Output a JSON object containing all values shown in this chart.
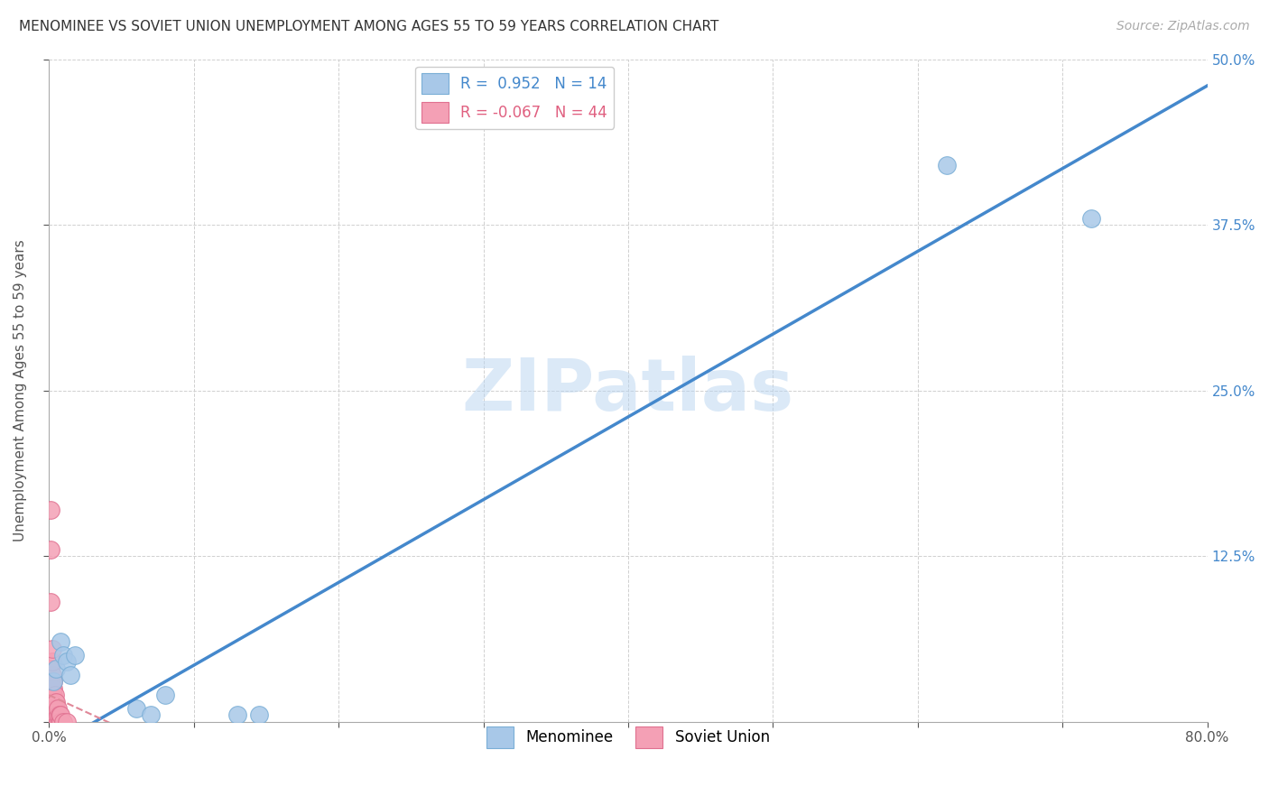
{
  "title": "MENOMINEE VS SOVIET UNION UNEMPLOYMENT AMONG AGES 55 TO 59 YEARS CORRELATION CHART",
  "source_text": "Source: ZipAtlas.com",
  "ylabel": "Unemployment Among Ages 55 to 59 years",
  "xlim": [
    0.0,
    0.8
  ],
  "ylim": [
    0.0,
    0.5
  ],
  "xticks": [
    0.0,
    0.1,
    0.2,
    0.3,
    0.4,
    0.5,
    0.6,
    0.7,
    0.8
  ],
  "yticks": [
    0.0,
    0.125,
    0.25,
    0.375,
    0.5
  ],
  "xticklabels": [
    "0.0%",
    "",
    "",
    "",
    "",
    "",
    "",
    "",
    "80.0%"
  ],
  "yticklabels": [
    "",
    "12.5%",
    "25.0%",
    "37.5%",
    "50.0%"
  ],
  "menominee_color": "#a8c8e8",
  "soviet_color": "#f4a0b5",
  "menominee_edge": "#7aaed6",
  "soviet_edge": "#e07090",
  "line_blue": "#4488cc",
  "line_pink": "#e08898",
  "watermark": "ZIPatlas",
  "legend_R_menominee": "0.952",
  "legend_N_menominee": "14",
  "legend_R_soviet": "-0.067",
  "legend_N_soviet": "44",
  "menominee_x": [
    0.003,
    0.005,
    0.008,
    0.01,
    0.012,
    0.015,
    0.018,
    0.06,
    0.07,
    0.08,
    0.62,
    0.72,
    0.13,
    0.145
  ],
  "menominee_y": [
    0.03,
    0.04,
    0.06,
    0.05,
    0.045,
    0.035,
    0.05,
    0.01,
    0.005,
    0.02,
    0.42,
    0.38,
    0.005,
    0.005
  ],
  "soviet_x": [
    0.001,
    0.001,
    0.001,
    0.001,
    0.001,
    0.001,
    0.001,
    0.001,
    0.001,
    0.001,
    0.002,
    0.002,
    0.002,
    0.002,
    0.002,
    0.002,
    0.002,
    0.002,
    0.002,
    0.003,
    0.003,
    0.003,
    0.003,
    0.003,
    0.003,
    0.003,
    0.004,
    0.004,
    0.004,
    0.004,
    0.004,
    0.005,
    0.005,
    0.005,
    0.005,
    0.006,
    0.006,
    0.006,
    0.007,
    0.007,
    0.008,
    0.008,
    0.01,
    0.012
  ],
  "soviet_y": [
    0.0,
    0.005,
    0.01,
    0.015,
    0.02,
    0.03,
    0.04,
    0.09,
    0.13,
    0.16,
    0.0,
    0.005,
    0.01,
    0.015,
    0.02,
    0.025,
    0.035,
    0.045,
    0.055,
    0.0,
    0.005,
    0.01,
    0.015,
    0.02,
    0.025,
    0.03,
    0.0,
    0.005,
    0.01,
    0.015,
    0.02,
    0.0,
    0.005,
    0.01,
    0.015,
    0.0,
    0.005,
    0.01,
    0.0,
    0.005,
    0.0,
    0.005,
    0.0,
    0.0
  ],
  "marker_size": 200,
  "background_color": "#ffffff",
  "grid_color": "#d0d0d0"
}
